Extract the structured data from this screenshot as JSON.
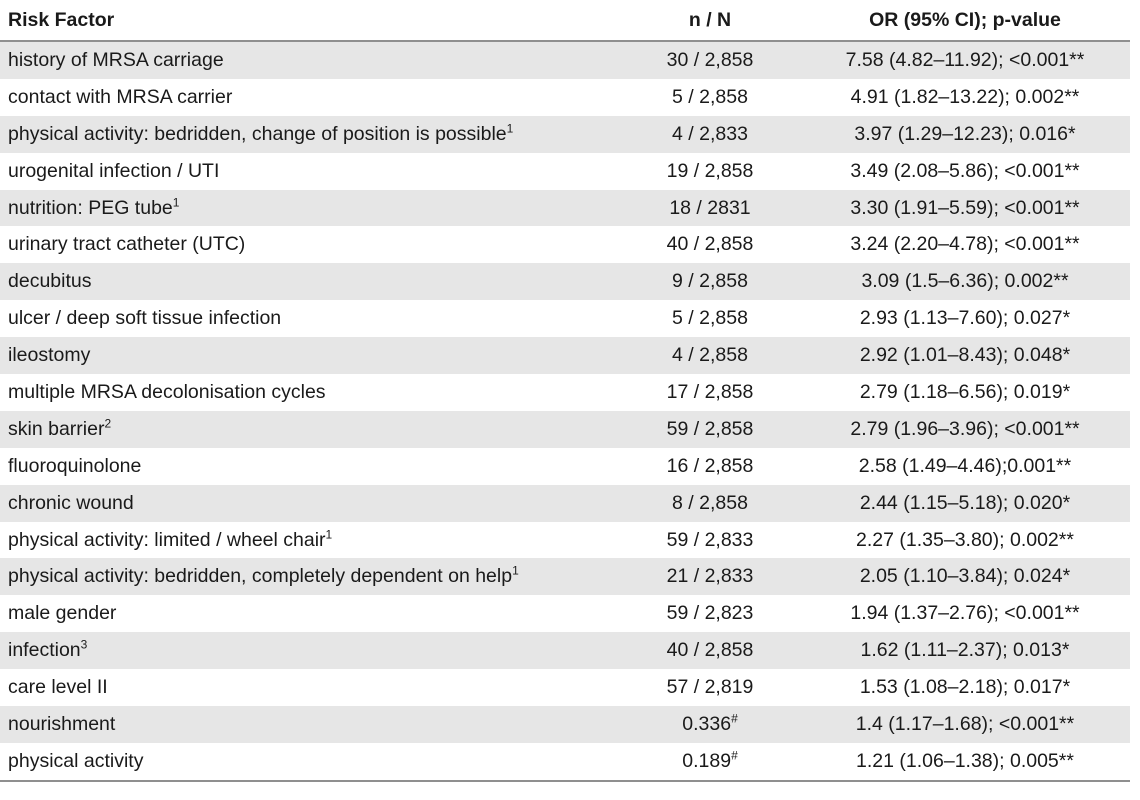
{
  "table": {
    "headers": {
      "risk_factor": "Risk Factor",
      "n_over_n": "n / N",
      "or_ci_p": "OR (95% CI); p-value"
    },
    "rows": [
      {
        "factor": "history of MRSA carriage",
        "sup": "",
        "n": "30 / 2,858",
        "n_sup": "",
        "or": "7.58 (4.82–11.92); <0.001**"
      },
      {
        "factor": "contact with MRSA carrier",
        "sup": "",
        "n": "5 / 2,858",
        "n_sup": "",
        "or": "4.91 (1.82–13.22); 0.002**"
      },
      {
        "factor": "physical activity: bedridden, change of position is possible",
        "sup": "1",
        "n": "4 / 2,833",
        "n_sup": "",
        "or": "3.97 (1.29–12.23); 0.016*"
      },
      {
        "factor": "urogenital infection / UTI",
        "sup": "",
        "n": "19 / 2,858",
        "n_sup": "",
        "or": "3.49 (2.08–5.86); <0.001**"
      },
      {
        "factor": "nutrition: PEG tube",
        "sup": "1",
        "n": "18 / 2831",
        "n_sup": "",
        "or": "3.30 (1.91–5.59); <0.001**"
      },
      {
        "factor": "urinary tract catheter (UTC)",
        "sup": "",
        "n": "40 / 2,858",
        "n_sup": "",
        "or": "3.24 (2.20–4.78); <0.001**"
      },
      {
        "factor": "decubitus",
        "sup": "",
        "n": "9 / 2,858",
        "n_sup": "",
        "or": "3.09 (1.5–6.36); 0.002**"
      },
      {
        "factor": "ulcer / deep soft tissue infection",
        "sup": "",
        "n": "5 / 2,858",
        "n_sup": "",
        "or": "2.93 (1.13–7.60); 0.027*"
      },
      {
        "factor": "ileostomy",
        "sup": "",
        "n": "4 / 2,858",
        "n_sup": "",
        "or": "2.92 (1.01–8.43); 0.048*"
      },
      {
        "factor": "multiple MRSA decolonisation cycles",
        "sup": "",
        "n": "17 / 2,858",
        "n_sup": "",
        "or": "2.79 (1.18–6.56); 0.019*"
      },
      {
        "factor": "skin barrier",
        "sup": "2",
        "n": "59 / 2,858",
        "n_sup": "",
        "or": "2.79 (1.96–3.96); <0.001**"
      },
      {
        "factor": "fluoroquinolone",
        "sup": "",
        "n": "16 / 2,858",
        "n_sup": "",
        "or": "2.58 (1.49–4.46);0.001**"
      },
      {
        "factor": "chronic wound",
        "sup": "",
        "n": "8 / 2,858",
        "n_sup": "",
        "or": "2.44 (1.15–5.18); 0.020*"
      },
      {
        "factor": "physical activity: limited / wheel chair",
        "sup": "1",
        "n": "59 / 2,833",
        "n_sup": "",
        "or": "2.27 (1.35–3.80); 0.002**"
      },
      {
        "factor": "physical activity: bedridden, completely dependent on help",
        "sup": "1",
        "n": "21 / 2,833",
        "n_sup": "",
        "or": "2.05 (1.10–3.84); 0.024*"
      },
      {
        "factor": "male gender",
        "sup": "",
        "n": "59 / 2,823",
        "n_sup": "",
        "or": "1.94 (1.37–2.76); <0.001**"
      },
      {
        "factor": "infection",
        "sup": "3",
        "n": "40 / 2,858",
        "n_sup": "",
        "or": "1.62 (1.11–2.37); 0.013*"
      },
      {
        "factor": "care level II",
        "sup": "",
        "n": "57 / 2,819",
        "n_sup": "",
        "or": "1.53 (1.08–2.18); 0.017*"
      },
      {
        "factor": "nourishment",
        "sup": "",
        "n": "0.336",
        "n_sup": "#",
        "or": "1.4 (1.17–1.68); <0.001**"
      },
      {
        "factor": "physical activity",
        "sup": "",
        "n": "0.189",
        "n_sup": "#",
        "or": "1.21 (1.06–1.38); 0.005**"
      }
    ]
  }
}
